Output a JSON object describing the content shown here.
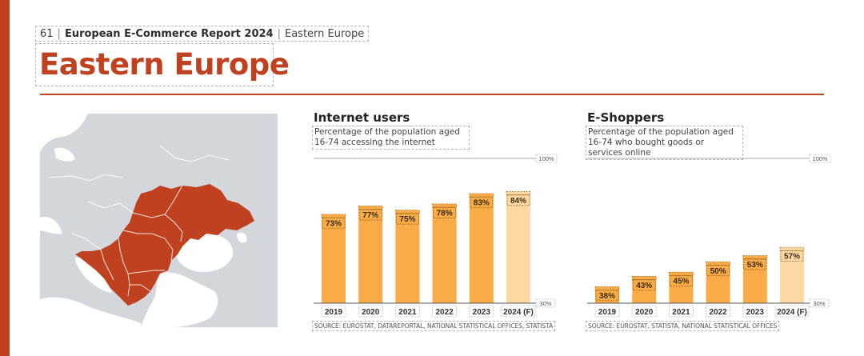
{
  "header": {
    "page_number": "61",
    "report_title": "European E-Commerce Report 2024",
    "section": "Eastern Europe",
    "title": "Eastern Europe"
  },
  "colors": {
    "accent": "#c0411f",
    "bar": "#f8ab47",
    "bar_forecast": "#fdd8a2",
    "map_water": "#ffffff",
    "map_land": "#d3d7dc",
    "map_highlight": "#c0411f"
  },
  "charts": [
    {
      "title": "Internet users",
      "subtitle": "Percentage of the population aged 16-74 accessing the internet",
      "source": "SOURCE: EUROSTAT, DATAREPORTAL, NATIONAL STATISTICAL OFFICES, STATISTA"
    },
    {
      "title": "E-Shoppers",
      "subtitle": "Percentage of the population aged 16-74 who bought goods or services online",
      "source": "SOURCE: EUROSTAT, STATISTA, NATIONAL STATISTICAL OFFICES"
    }
  ],
  "chart_data": [
    {
      "type": "bar",
      "title": "Internet users",
      "categories": [
        "2019",
        "2020",
        "2021",
        "2022",
        "2023",
        "2024 (F)"
      ],
      "values": [
        73,
        77,
        75,
        78,
        83,
        84
      ],
      "value_labels": [
        "73%",
        "77%",
        "75%",
        "78%",
        "83%",
        "84%"
      ],
      "forecast": [
        false,
        false,
        false,
        false,
        false,
        true
      ],
      "ylim": [
        30,
        100
      ],
      "axis_max_label": "100%",
      "axis_min_label": "30%",
      "grid": false
    },
    {
      "type": "bar",
      "title": "E-Shoppers",
      "categories": [
        "2019",
        "2020",
        "2021",
        "2022",
        "2023",
        "2024 (F)"
      ],
      "values": [
        38,
        43,
        45,
        50,
        53,
        57
      ],
      "value_labels": [
        "38%",
        "43%",
        "45%",
        "50%",
        "53%",
        "57%"
      ],
      "forecast": [
        false,
        false,
        false,
        false,
        false,
        true
      ],
      "ylim": [
        30,
        100
      ],
      "axis_max_label": "100%",
      "axis_min_label": "30%",
      "grid": false
    }
  ]
}
